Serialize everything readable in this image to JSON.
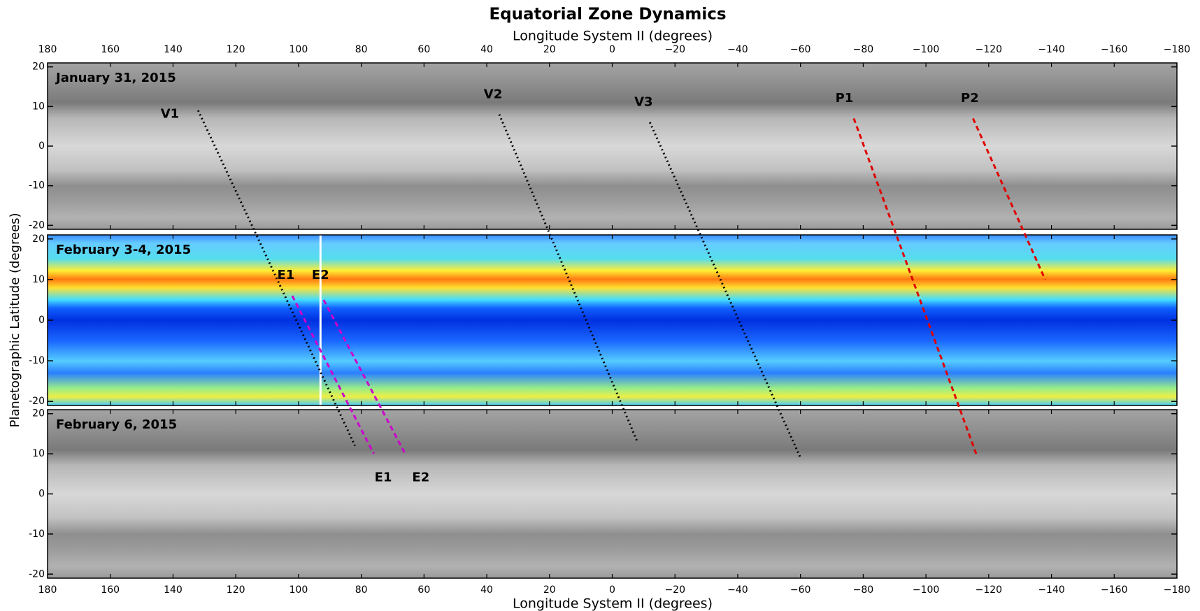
{
  "chart_data": {
    "type": "tracks",
    "title": "Equatorial Zone Dynamics",
    "xlabel": "Longitude System II (degrees)",
    "ylabel": "Planetographic Latitude (degrees)",
    "xlim": [
      180,
      -180
    ],
    "xticks": [
      180,
      160,
      140,
      120,
      100,
      80,
      60,
      40,
      20,
      0,
      {
        "value": -20,
        "label": "−20"
      },
      {
        "value": -40,
        "label": "−40"
      },
      {
        "value": -60,
        "label": "−60"
      },
      {
        "value": -80,
        "label": "−80"
      },
      {
        "value": -100,
        "label": "−100"
      },
      {
        "value": -120,
        "label": "−120"
      },
      {
        "value": -140,
        "label": "−140"
      },
      {
        "value": -160,
        "label": "−160"
      },
      {
        "value": -180,
        "label": "−180"
      }
    ],
    "ylim": [
      -21,
      21
    ],
    "yticks": [
      -20,
      -10,
      0,
      10,
      20
    ],
    "panels": [
      {
        "label": "January 31, 2015",
        "style": "visible"
      },
      {
        "label": "February 3-4, 2015",
        "style": "thermal"
      },
      {
        "label": "February 6, 2015",
        "style": "visible"
      }
    ],
    "tracks": [
      {
        "color": "#000000",
        "dash": "dotted",
        "panels": [
          0,
          2
        ],
        "x": [
          132,
          82
        ],
        "y": [
          9,
          12
        ]
      },
      {
        "color": "#000000",
        "dash": "dotted",
        "panels": [
          0,
          2
        ],
        "x": [
          36,
          -8
        ],
        "y": [
          8,
          13
        ]
      },
      {
        "color": "#000000",
        "dash": "dotted",
        "panels": [
          0,
          2
        ],
        "x": [
          -12,
          -60
        ],
        "y": [
          6,
          9
        ]
      },
      {
        "color": "#e00000",
        "dash": "dashed",
        "panels": [
          0,
          2
        ],
        "x": [
          -77,
          -116
        ],
        "y": [
          7,
          10
        ]
      },
      {
        "color": "#e00000",
        "dash": "dashed",
        "panels": [
          0,
          1
        ],
        "x": [
          -115,
          -138
        ],
        "y": [
          7,
          10
        ]
      },
      {
        "color": "#cc00cc",
        "dash": "dashed",
        "panels": [
          1,
          2
        ],
        "x": [
          102,
          76
        ],
        "y": [
          6,
          10
        ]
      },
      {
        "color": "#cc00cc",
        "dash": "dashed",
        "panels": [
          1,
          2
        ],
        "x": [
          92,
          66
        ],
        "y": [
          5,
          10
        ]
      }
    ],
    "annotations": [
      {
        "text": "V1",
        "panel": 0,
        "x": 141,
        "y": 8
      },
      {
        "text": "V2",
        "panel": 0,
        "x": 38,
        "y": 13
      },
      {
        "text": "V3",
        "panel": 0,
        "x": -10,
        "y": 11
      },
      {
        "text": "P1",
        "panel": 0,
        "x": -74,
        "y": 12
      },
      {
        "text": "P2",
        "panel": 0,
        "x": -114,
        "y": 12
      },
      {
        "text": "E1",
        "panel": 1,
        "x": 104,
        "y": 11
      },
      {
        "text": "E2",
        "panel": 1,
        "x": 93,
        "y": 11
      },
      {
        "text": "E1",
        "panel": 2,
        "x": 73,
        "y": 4
      },
      {
        "text": "E2",
        "panel": 2,
        "x": 61,
        "y": 4
      }
    ]
  }
}
